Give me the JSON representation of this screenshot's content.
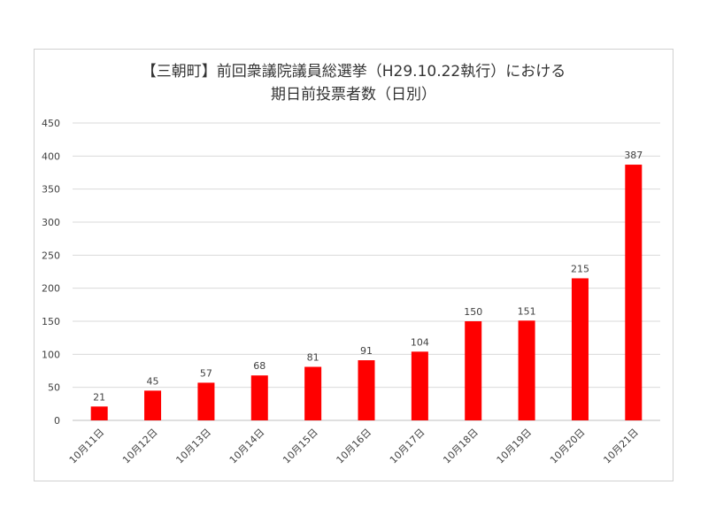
{
  "chart_data": {
    "type": "bar",
    "title_line1": "【三朝町】前回衆議院議員総選挙（H29.10.22執行）における",
    "title_line2": "期日前投票者数（日別）",
    "categories": [
      "10月11日",
      "10月12日",
      "10月13日",
      "10月14日",
      "10月15日",
      "10月16日",
      "10月17日",
      "10月18日",
      "10月19日",
      "10月20日",
      "10月21日"
    ],
    "values": [
      21,
      45,
      57,
      68,
      81,
      91,
      104,
      150,
      151,
      215,
      387
    ],
    "y_ticks": [
      0,
      50,
      100,
      150,
      200,
      250,
      300,
      350,
      400,
      450
    ],
    "ylim": [
      0,
      450
    ],
    "xlabel": "",
    "ylabel": "",
    "grid": true,
    "legend": "none",
    "bar_color": "#ff0000",
    "grid_color": "#d9d9d9",
    "text_color": "#404040"
  }
}
